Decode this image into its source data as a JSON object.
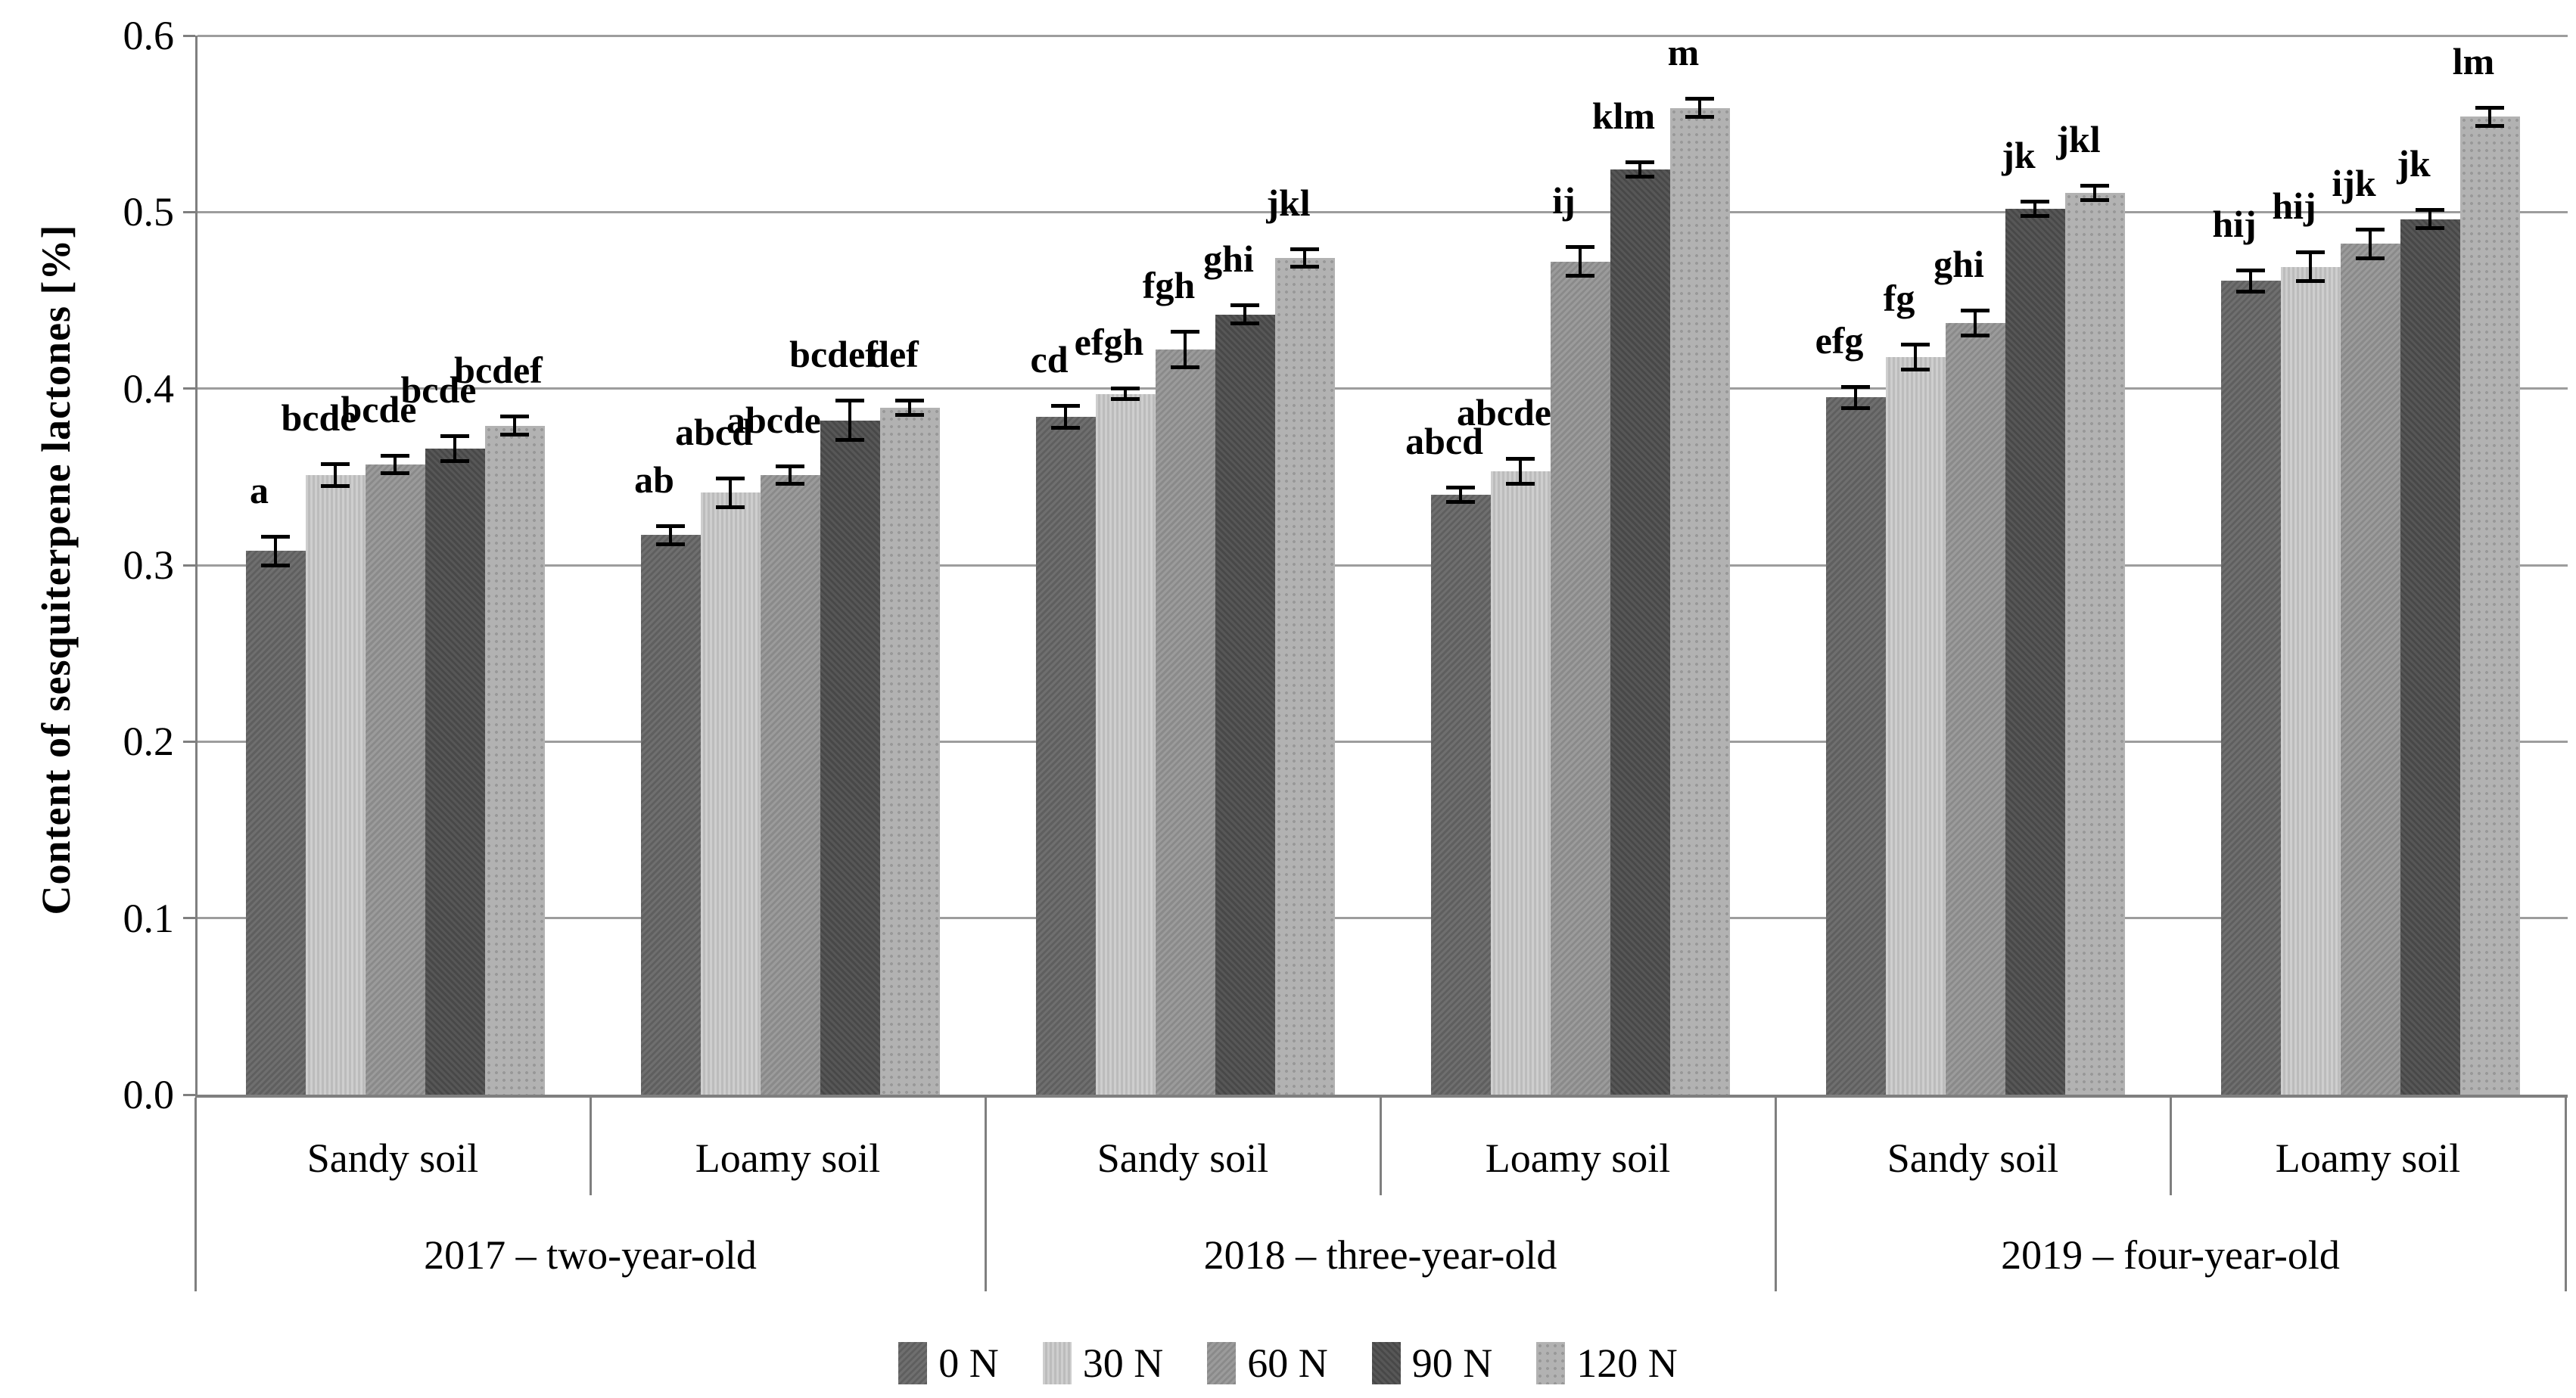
{
  "figure": {
    "background": "#ffffff",
    "axis_color": "#7f7f7f",
    "gridline_color": "#9d9d9d",
    "error_bar_color": "#000000"
  },
  "chart_data": {
    "type": "bar",
    "title": "",
    "ylabel": "Content of sesquiterpene lactones [%]",
    "xlabel": "",
    "ylim": [
      0.0,
      0.6
    ],
    "y_step": 0.1,
    "y_ticks": [
      "0.0",
      "0.1",
      "0.2",
      "0.3",
      "0.4",
      "0.5",
      "0.6"
    ],
    "grid": "horizontal",
    "legend_position": "bottom",
    "series": [
      "0 N",
      "30 N",
      "60 N",
      "90 N",
      "120 N"
    ],
    "series_colors": [
      "#676767",
      "#c6c6c6",
      "#939393",
      "#505050",
      "#b2b2b2"
    ],
    "years": [
      {
        "label": "2017 – two-year-old"
      },
      {
        "label": "2018 – three-year-old"
      },
      {
        "label": "2019 – four-year-old"
      }
    ],
    "groups": [
      {
        "year": "2017 – two-year-old",
        "soil": "Sandy soil",
        "values": [
          0.308,
          0.351,
          0.357,
          0.366,
          0.379
        ],
        "errors": [
          0.007,
          0.005,
          0.004,
          0.006,
          0.004
        ],
        "letters": [
          "a",
          "bcde",
          "bcde",
          "bcde",
          "bcdef"
        ]
      },
      {
        "year": "2017 – two-year-old",
        "soil": "Loamy soil",
        "values": [
          0.317,
          0.341,
          0.351,
          0.382,
          0.389
        ],
        "errors": [
          0.004,
          0.007,
          0.004,
          0.01,
          0.003
        ],
        "letters": [
          "ab",
          "abcd",
          "abcde",
          "bcdef",
          "def"
        ]
      },
      {
        "year": "2018 – three-year-old",
        "soil": "Sandy soil",
        "values": [
          0.384,
          0.397,
          0.422,
          0.442,
          0.474
        ],
        "errors": [
          0.005,
          0.002,
          0.009,
          0.004,
          0.004
        ],
        "letters": [
          "cd",
          "efgh",
          "fgh",
          "ghi",
          "jkl"
        ]
      },
      {
        "year": "2018 – three-year-old",
        "soil": "Loamy soil",
        "values": [
          0.34,
          0.353,
          0.472,
          0.524,
          0.559
        ],
        "errors": [
          0.003,
          0.006,
          0.007,
          0.003,
          0.004
        ],
        "letters": [
          "abcd",
          "abcde",
          "ij",
          "klm",
          "m"
        ]
      },
      {
        "year": "2019 – four-year-old",
        "soil": "Sandy soil",
        "values": [
          0.395,
          0.418,
          0.437,
          0.502,
          0.511
        ],
        "errors": [
          0.005,
          0.006,
          0.006,
          0.003,
          0.003
        ],
        "letters": [
          "efg",
          "fg",
          "ghi",
          "jk",
          "jkl"
        ]
      },
      {
        "year": "2019 – four-year-old",
        "soil": "Loamy soil",
        "values": [
          0.461,
          0.469,
          0.482,
          0.496,
          0.554
        ],
        "errors": [
          0.005,
          0.007,
          0.007,
          0.004,
          0.004
        ],
        "letters": [
          "hij",
          "hij",
          "ijk",
          "jk",
          "lm"
        ]
      }
    ]
  }
}
